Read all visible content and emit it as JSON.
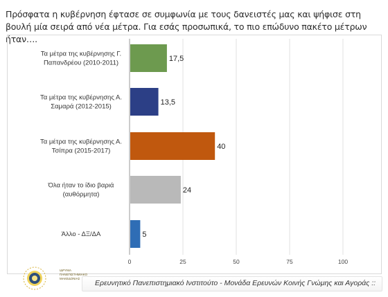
{
  "question": "Πρόσφατα η κυβέρνηση έφτασε σε συμφωνία με τους δανειστές μας και ψήφισε στη βουλή μία σειρά από νέα μέτρα. Για εσάς προσωπικά, το πιο επώδυνο πακέτο μέτρων ήταν….",
  "footer": "Ερευνητικό Πανεπιστημιακό Ινστιτούτο - Μονάδα Ερευνών Κοινής Γνώμης και Αγοράς ::",
  "logo": {
    "line1": "ΙΔΡΥΜΑ",
    "line2": "ΠΑΝΕΠΙΣΤΗΜΙΑΚΟ",
    "line3": "ΜΑΚΕΔΟΝΙΑΣ"
  },
  "chart_data": {
    "type": "bar",
    "orientation": "horizontal",
    "categories": [
      [
        "Τα μέτρα της κυβέρνησης Γ.",
        "Παπανδρέου (2010-2011)"
      ],
      [
        "Τα μέτρα της κυβέρνησης Α.",
        "Σαμαρά  (2012-2015)"
      ],
      [
        "Τα μέτρα της κυβέρνησης Α.",
        "Τσίπρα (2015-2017)"
      ],
      [
        "Όλα ήταν το ίδιο βαριά",
        "(αυθόρμητα)"
      ],
      [
        "Άλλο - ΔΞ/ΔΑ"
      ]
    ],
    "values": [
      17.5,
      13.5,
      40,
      24,
      5
    ],
    "value_labels": [
      "17,5",
      "13,5",
      "40",
      "24",
      "5"
    ],
    "colors": [
      "#6d9a4f",
      "#2c3f86",
      "#c0580e",
      "#b9b9b9",
      "#2f6db5"
    ],
    "xlim": [
      0,
      100
    ],
    "xticks": [
      "0",
      "25",
      "50",
      "75",
      "100"
    ],
    "grid": true
  }
}
